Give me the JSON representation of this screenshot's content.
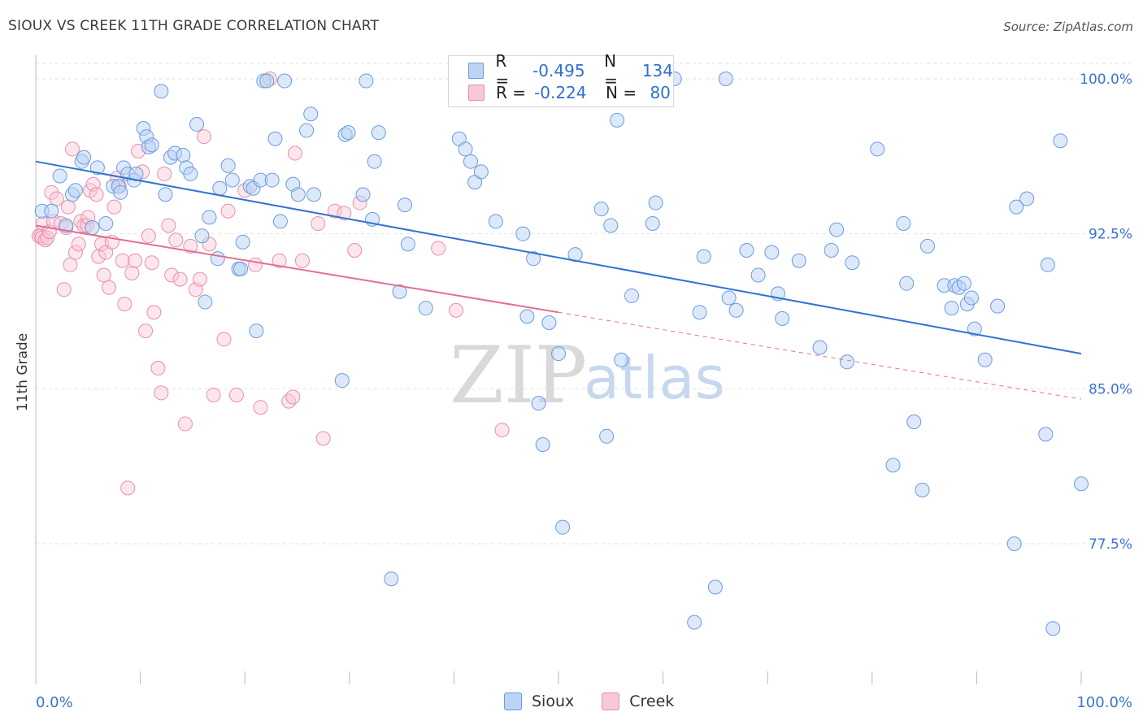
{
  "title": "SIOUX VS CREEK 11TH GRADE CORRELATION CHART",
  "source": "Source: ZipAtlas.com",
  "watermark": {
    "zip": "ZIP",
    "atlas": "atlas"
  },
  "colors": {
    "sioux_fill": "#bcd4f4",
    "sioux_stroke": "#6a9be0",
    "sioux_line": "#2f72d2",
    "creek_fill": "#f8c8d6",
    "creek_stroke": "#e890ab",
    "creek_line": "#e46d96",
    "axis_label": "#3a74cc",
    "grid": "#e2e2e2"
  },
  "legend": {
    "rows": [
      {
        "r_label": "R =",
        "r_value": "-0.495",
        "n_label": "N =",
        "n_value": "134",
        "series": "sioux"
      },
      {
        "r_label": "R =",
        "r_value": "-0.224",
        "n_label": "N =",
        "n_value": " 80",
        "series": "creek"
      }
    ],
    "bottom": [
      {
        "label": "Sioux",
        "series": "sioux"
      },
      {
        "label": "Creek",
        "series": "creek"
      }
    ]
  },
  "chart_data": {
    "type": "scatter",
    "title": "SIOUX VS CREEK 11TH GRADE CORRELATION CHART",
    "xlabel": "",
    "ylabel": "11th Grade",
    "xlim": [
      0,
      100
    ],
    "ylim": [
      72.0,
      100.6
    ],
    "x_tick_labels": [
      "0.0%",
      "100.0%"
    ],
    "y_ticks": [
      77.5,
      85.0,
      92.5,
      100.0
    ],
    "y_tick_labels": [
      "77.5%",
      "85.0%",
      "92.5%",
      "100.0%"
    ],
    "grid": true,
    "series": [
      {
        "name": "Sioux",
        "trend": {
          "x0": 0,
          "y0": 96.0,
          "x1": 100,
          "y1": 86.7
        },
        "points": [
          [
            0.6,
            93.6
          ],
          [
            1.5,
            93.6
          ],
          [
            2.3,
            95.3
          ],
          [
            2.9,
            92.9
          ],
          [
            3.5,
            94.4
          ],
          [
            3.8,
            94.6
          ],
          [
            4.4,
            96.0
          ],
          [
            4.6,
            96.2
          ],
          [
            5.4,
            92.8
          ],
          [
            5.9,
            95.7
          ],
          [
            6.7,
            93.0
          ],
          [
            7.4,
            94.8
          ],
          [
            7.9,
            94.8
          ],
          [
            8.1,
            94.5
          ],
          [
            8.4,
            95.7
          ],
          [
            8.8,
            95.4
          ],
          [
            9.4,
            95.1
          ],
          [
            9.6,
            95.4
          ],
          [
            10.3,
            97.6
          ],
          [
            10.6,
            97.2
          ],
          [
            10.8,
            96.7
          ],
          [
            11.1,
            96.8
          ],
          [
            12.0,
            99.4
          ],
          [
            12.4,
            94.4
          ],
          [
            12.9,
            96.2
          ],
          [
            13.3,
            96.4
          ],
          [
            14.1,
            96.3
          ],
          [
            14.4,
            95.7
          ],
          [
            14.8,
            95.4
          ],
          [
            15.4,
            97.8
          ],
          [
            15.9,
            92.4
          ],
          [
            16.2,
            89.2
          ],
          [
            16.6,
            93.3
          ],
          [
            17.4,
            91.3
          ],
          [
            17.6,
            94.7
          ],
          [
            18.4,
            95.8
          ],
          [
            18.8,
            95.1
          ],
          [
            19.4,
            90.8
          ],
          [
            19.6,
            90.8
          ],
          [
            19.8,
            92.1
          ],
          [
            20.5,
            94.8
          ],
          [
            20.8,
            94.7
          ],
          [
            21.1,
            87.8
          ],
          [
            21.5,
            95.1
          ],
          [
            21.8,
            99.9
          ],
          [
            22.1,
            99.9
          ],
          [
            22.6,
            95.1
          ],
          [
            22.9,
            97.1
          ],
          [
            23.4,
            93.1
          ],
          [
            23.8,
            99.9
          ],
          [
            24.6,
            94.9
          ],
          [
            25.1,
            94.4
          ],
          [
            25.9,
            97.5
          ],
          [
            26.3,
            98.3
          ],
          [
            26.6,
            94.4
          ],
          [
            29.3,
            85.4
          ],
          [
            29.6,
            97.3
          ],
          [
            29.9,
            97.4
          ],
          [
            31.3,
            94.4
          ],
          [
            31.6,
            99.9
          ],
          [
            32.2,
            93.2
          ],
          [
            32.4,
            96.0
          ],
          [
            32.8,
            97.4
          ],
          [
            34.0,
            75.8
          ],
          [
            34.8,
            89.7
          ],
          [
            35.3,
            93.9
          ],
          [
            35.6,
            92.0
          ],
          [
            37.3,
            88.9
          ],
          [
            40.5,
            97.1
          ],
          [
            41.1,
            96.6
          ],
          [
            41.6,
            96.0
          ],
          [
            42.0,
            95.0
          ],
          [
            42.6,
            95.5
          ],
          [
            44.0,
            93.1
          ],
          [
            45.4,
            100.0
          ],
          [
            46.6,
            92.5
          ],
          [
            47.0,
            88.5
          ],
          [
            47.6,
            91.3
          ],
          [
            48.1,
            84.3
          ],
          [
            48.5,
            82.3
          ],
          [
            49.1,
            88.2
          ],
          [
            50.0,
            86.7
          ],
          [
            50.4,
            78.3
          ],
          [
            51.6,
            91.5
          ],
          [
            54.1,
            93.7
          ],
          [
            54.6,
            82.7
          ],
          [
            55.0,
            92.9
          ],
          [
            55.6,
            98.0
          ],
          [
            56.0,
            86.4
          ],
          [
            57.0,
            89.5
          ],
          [
            59.0,
            93.0
          ],
          [
            59.3,
            94.0
          ],
          [
            61.1,
            100.0
          ],
          [
            63.0,
            73.7
          ],
          [
            63.5,
            88.7
          ],
          [
            63.9,
            91.4
          ],
          [
            65.0,
            75.4
          ],
          [
            66.0,
            100.0
          ],
          [
            66.3,
            89.4
          ],
          [
            67.0,
            88.8
          ],
          [
            68.0,
            91.7
          ],
          [
            69.1,
            90.5
          ],
          [
            70.4,
            91.6
          ],
          [
            71.0,
            89.6
          ],
          [
            71.4,
            88.4
          ],
          [
            73.0,
            91.2
          ],
          [
            75.0,
            87.0
          ],
          [
            76.1,
            91.7
          ],
          [
            76.6,
            92.7
          ],
          [
            77.6,
            86.3
          ],
          [
            78.1,
            91.1
          ],
          [
            80.5,
            96.6
          ],
          [
            82.0,
            81.3
          ],
          [
            83.0,
            93.0
          ],
          [
            83.3,
            90.1
          ],
          [
            84.0,
            83.4
          ],
          [
            84.8,
            80.1
          ],
          [
            85.3,
            91.9
          ],
          [
            86.9,
            90.0
          ],
          [
            87.6,
            88.9
          ],
          [
            87.9,
            90.0
          ],
          [
            88.3,
            89.9
          ],
          [
            88.8,
            90.1
          ],
          [
            89.1,
            89.1
          ],
          [
            89.5,
            89.4
          ],
          [
            89.8,
            87.9
          ],
          [
            90.8,
            86.4
          ],
          [
            92.0,
            89.0
          ],
          [
            93.6,
            77.5
          ],
          [
            93.8,
            93.8
          ],
          [
            94.8,
            94.2
          ],
          [
            96.6,
            82.8
          ],
          [
            96.8,
            91.0
          ],
          [
            97.3,
            73.4
          ],
          [
            98.0,
            97.0
          ],
          [
            100.0,
            80.4
          ]
        ]
      },
      {
        "name": "Creek",
        "trend": {
          "x0": 0,
          "y0": 92.9,
          "x1": 100,
          "y1": 84.5,
          "solid_to_x": 50
        },
        "points": [
          [
            0.3,
            92.4
          ],
          [
            0.5,
            92.4
          ],
          [
            0.6,
            92.3
          ],
          [
            0.7,
            93.0
          ],
          [
            0.9,
            92.2
          ],
          [
            1.1,
            92.3
          ],
          [
            1.3,
            92.6
          ],
          [
            1.5,
            94.5
          ],
          [
            1.7,
            93.1
          ],
          [
            2.0,
            94.2
          ],
          [
            2.4,
            93.0
          ],
          [
            2.7,
            89.8
          ],
          [
            2.9,
            92.8
          ],
          [
            3.1,
            93.8
          ],
          [
            3.3,
            91.0
          ],
          [
            3.5,
            96.6
          ],
          [
            3.8,
            91.6
          ],
          [
            4.1,
            92.0
          ],
          [
            4.3,
            93.1
          ],
          [
            4.6,
            92.9
          ],
          [
            4.9,
            92.9
          ],
          [
            5.0,
            93.3
          ],
          [
            5.2,
            94.6
          ],
          [
            5.5,
            94.9
          ],
          [
            5.8,
            94.4
          ],
          [
            6.0,
            91.4
          ],
          [
            6.3,
            92.0
          ],
          [
            6.5,
            90.5
          ],
          [
            6.7,
            91.6
          ],
          [
            7.0,
            89.9
          ],
          [
            7.3,
            92.1
          ],
          [
            7.5,
            93.8
          ],
          [
            7.8,
            95.2
          ],
          [
            8.0,
            94.8
          ],
          [
            8.3,
            91.2
          ],
          [
            8.5,
            89.1
          ],
          [
            8.8,
            80.2
          ],
          [
            9.2,
            90.6
          ],
          [
            9.5,
            91.2
          ],
          [
            9.8,
            96.5
          ],
          [
            10.2,
            95.5
          ],
          [
            10.5,
            87.8
          ],
          [
            10.8,
            92.4
          ],
          [
            11.1,
            91.1
          ],
          [
            11.3,
            88.7
          ],
          [
            11.7,
            86.0
          ],
          [
            12.0,
            84.8
          ],
          [
            12.3,
            95.4
          ],
          [
            12.7,
            92.9
          ],
          [
            13.0,
            90.5
          ],
          [
            13.4,
            92.2
          ],
          [
            13.8,
            90.3
          ],
          [
            14.3,
            83.3
          ],
          [
            14.8,
            91.9
          ],
          [
            15.3,
            89.8
          ],
          [
            15.7,
            90.3
          ],
          [
            16.1,
            97.2
          ],
          [
            16.6,
            92.0
          ],
          [
            17.0,
            84.7
          ],
          [
            18.0,
            87.4
          ],
          [
            18.4,
            93.6
          ],
          [
            19.2,
            84.7
          ],
          [
            20.0,
            94.6
          ],
          [
            21.0,
            91.0
          ],
          [
            21.5,
            84.1
          ],
          [
            22.4,
            100.0
          ],
          [
            23.3,
            91.2
          ],
          [
            24.2,
            84.4
          ],
          [
            24.6,
            84.6
          ],
          [
            24.8,
            96.4
          ],
          [
            25.5,
            91.2
          ],
          [
            27.0,
            93.0
          ],
          [
            27.5,
            82.6
          ],
          [
            28.6,
            93.6
          ],
          [
            29.5,
            93.5
          ],
          [
            30.5,
            91.7
          ],
          [
            31.0,
            94.0
          ],
          [
            38.5,
            91.8
          ],
          [
            40.2,
            88.8
          ],
          [
            44.6,
            83.0
          ]
        ]
      }
    ]
  }
}
